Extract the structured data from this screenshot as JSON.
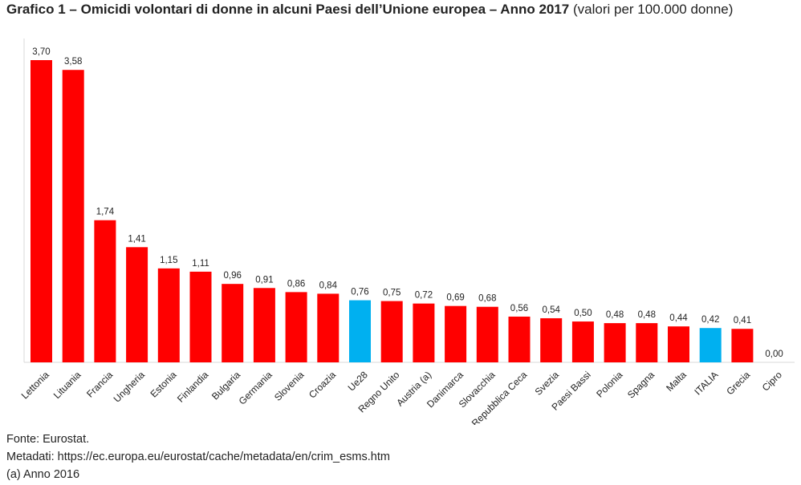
{
  "title": {
    "bold": "Grafico 1 – Omicidi volontari di donne in alcuni Paesi dell’Unione europea – Anno 2017",
    "normal": "(valori per 100.000 donne)"
  },
  "chart_data": {
    "type": "bar",
    "title": "Grafico 1 – Omicidi volontari di donne in alcuni Paesi dell’Unione europea – Anno 2017 (valori per 100.000 donne)",
    "categories": [
      "Lettonia",
      "Lituania",
      "Francia",
      "Ungheria",
      "Estonia",
      "Finlandia",
      "Bulgaria",
      "Germania",
      "Slovenia",
      "Croazia",
      "Ue28",
      "Regno Unito",
      "Austria (a)",
      "Danimarca",
      "Slovacchia",
      "Repubblica Ceca",
      "Svezia",
      "Paesi Bassi",
      "Polonia",
      "Spagna",
      "Malta",
      "ITALIA",
      "Grecia",
      "Cipro"
    ],
    "values": [
      3.7,
      3.58,
      1.74,
      1.41,
      1.15,
      1.11,
      0.96,
      0.91,
      0.86,
      0.84,
      0.76,
      0.75,
      0.72,
      0.69,
      0.68,
      0.56,
      0.54,
      0.5,
      0.48,
      0.48,
      0.44,
      0.42,
      0.41,
      0.0
    ],
    "value_labels": [
      "3,70",
      "3,58",
      "1,74",
      "1,41",
      "1,15",
      "1,11",
      "0,96",
      "0,91",
      "0,86",
      "0,84",
      "0,76",
      "0,75",
      "0,72",
      "0,69",
      "0,68",
      "0,56",
      "0,54",
      "0,50",
      "0,48",
      "0,48",
      "0,44",
      "0,42",
      "0,41",
      "0,00"
    ],
    "highlight": [
      "Ue28",
      "ITALIA"
    ],
    "colors": {
      "default": "#ff0000",
      "highlight": "#00b0f0",
      "axis": "#d9d9d9"
    },
    "xlabel": "",
    "ylabel": "",
    "ylim": [
      0,
      3.7
    ],
    "grid": false,
    "legend": "none"
  },
  "footer": {
    "source": "Fonte: Eurostat.",
    "metadata": "Metadati: https://ec.europa.eu/eurostat/cache/metadata/en/crim_esms.htm",
    "note": "(a) Anno 2016"
  }
}
